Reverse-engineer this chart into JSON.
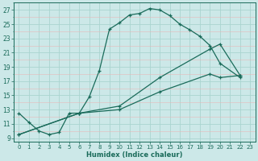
{
  "xlabel": "Humidex (Indice chaleur)",
  "bg_color": "#cce8e8",
  "major_grid_color": "#aad4d0",
  "minor_grid_color": "#e8b8b8",
  "line_color": "#1a6b5a",
  "xlim": [
    -0.5,
    23.5
  ],
  "ylim": [
    8.5,
    28.0
  ],
  "xticks": [
    0,
    1,
    2,
    3,
    4,
    5,
    6,
    7,
    8,
    9,
    10,
    11,
    12,
    13,
    14,
    15,
    16,
    17,
    18,
    19,
    20,
    21,
    22,
    23
  ],
  "yticks": [
    9,
    11,
    13,
    15,
    17,
    19,
    21,
    23,
    25,
    27
  ],
  "line1_x": [
    0,
    1,
    2,
    3,
    4,
    5,
    6,
    7,
    8,
    9,
    10,
    11,
    12,
    13,
    14,
    15,
    16,
    17,
    18,
    19,
    20,
    22
  ],
  "line1_y": [
    12.5,
    11.2,
    10.0,
    9.5,
    9.8,
    12.5,
    12.5,
    14.8,
    18.5,
    24.3,
    25.2,
    26.3,
    26.5,
    27.2,
    27.0,
    26.2,
    25.0,
    24.2,
    23.3,
    22.0,
    19.5,
    17.5
  ],
  "line2_x": [
    0,
    6,
    10,
    14,
    19,
    20,
    22
  ],
  "line2_y": [
    9.5,
    12.5,
    13.5,
    17.5,
    21.5,
    22.2,
    17.8
  ],
  "line3_x": [
    0,
    6,
    10,
    14,
    19,
    20,
    22
  ],
  "line3_y": [
    9.5,
    12.5,
    13.0,
    15.5,
    18.0,
    17.5,
    17.8
  ]
}
